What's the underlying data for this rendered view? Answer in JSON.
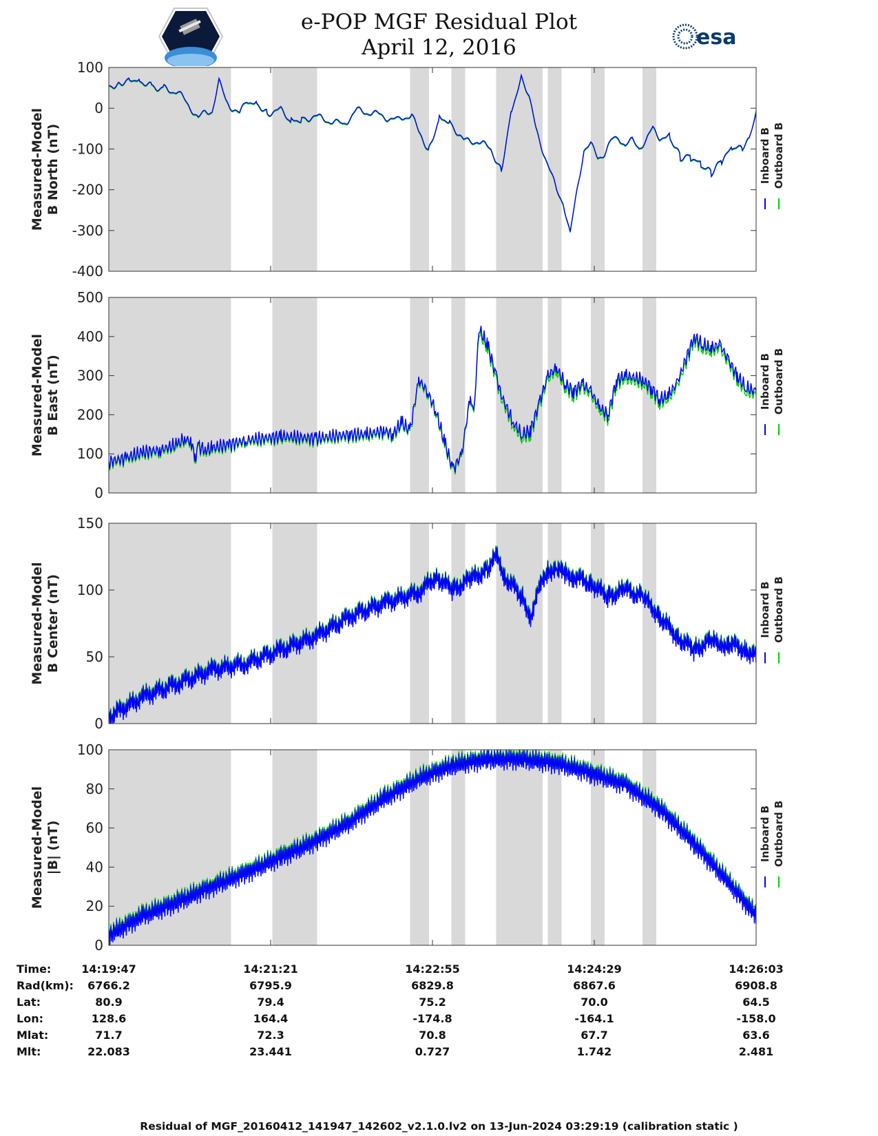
{
  "header": {
    "title": "e-POP MGF Residual Plot",
    "date": "April 12, 2016",
    "left_logo": "cassiope-satellite-logo",
    "right_logo": "esa-logo",
    "right_logo_text": "esa"
  },
  "colors": {
    "inboard": "#0000ff",
    "outboard": "#00cc00",
    "shade": "#d9d9d9"
  },
  "chart_data": [
    {
      "type": "line",
      "id": "north",
      "ylabel": [
        "Measured-Model",
        "B North (nT)"
      ],
      "ylim": [
        -400,
        100
      ],
      "yticks": [
        -400,
        -300,
        -200,
        -100,
        0,
        100
      ],
      "x_range_seconds": [
        0,
        376
      ],
      "legend": [
        "Inboard B",
        "Outboard B"
      ],
      "series": [
        {
          "name": "Inboard B",
          "x": [
            0,
            6,
            12,
            18,
            25,
            32,
            40,
            48,
            52,
            56,
            60,
            64,
            68,
            72,
            76,
            80,
            86,
            92,
            100,
            106,
            112,
            120,
            128,
            136,
            144,
            152,
            160,
            168,
            172,
            176,
            180,
            186,
            192,
            198,
            206,
            214,
            222,
            228,
            234,
            240,
            244,
            248,
            252,
            256,
            260,
            264,
            268,
            272,
            276,
            280,
            284,
            288,
            292,
            296,
            300,
            304,
            308,
            312,
            316,
            320,
            326,
            332,
            338,
            344,
            350,
            356,
            362,
            368,
            372,
            376
          ],
          "values": [
            55,
            62,
            75,
            70,
            55,
            50,
            40,
            0,
            -25,
            -10,
            -5,
            65,
            20,
            0,
            -15,
            20,
            15,
            -10,
            -5,
            -30,
            -25,
            -20,
            -30,
            -40,
            -5,
            -10,
            -20,
            -30,
            -20,
            -15,
            -60,
            -100,
            -20,
            -30,
            -80,
            -80,
            -100,
            -150,
            0,
            80,
            30,
            -50,
            -100,
            -150,
            -200,
            -230,
            -310,
            -200,
            -100,
            -90,
            -120,
            -110,
            -80,
            -70,
            -90,
            -80,
            -95,
            -80,
            -50,
            -70,
            -70,
            -120,
            -120,
            -140,
            -160,
            -130,
            -100,
            -100,
            -80,
            -10
          ]
        },
        {
          "name": "Outboard B",
          "x": [
            0,
            6,
            12,
            18,
            25,
            32,
            40,
            48,
            52,
            56,
            60,
            64,
            68,
            72,
            76,
            80,
            86,
            92,
            100,
            106,
            112,
            120,
            128,
            136,
            144,
            152,
            160,
            168,
            172,
            176,
            180,
            186,
            192,
            198,
            206,
            214,
            222,
            228,
            234,
            240,
            244,
            248,
            252,
            256,
            260,
            264,
            268,
            272,
            276,
            280,
            284,
            288,
            292,
            296,
            300,
            304,
            308,
            312,
            316,
            320,
            326,
            332,
            338,
            344,
            350,
            356,
            362,
            368,
            372,
            376
          ],
          "values": [
            53,
            60,
            73,
            68,
            53,
            48,
            38,
            -2,
            -27,
            -12,
            -7,
            63,
            18,
            -2,
            -17,
            18,
            13,
            -12,
            -7,
            -32,
            -27,
            -22,
            -32,
            -42,
            -7,
            -12,
            -22,
            -32,
            -22,
            -17,
            -62,
            -102,
            -22,
            -32,
            -82,
            -82,
            -102,
            -152,
            -2,
            78,
            28,
            -52,
            -102,
            -152,
            -202,
            -232,
            -312,
            -202,
            -102,
            -92,
            -122,
            -112,
            -82,
            -72,
            -92,
            -82,
            -97,
            -82,
            -52,
            -72,
            -72,
            -122,
            -122,
            -142,
            -162,
            -132,
            -102,
            -102,
            -82,
            -5
          ]
        }
      ]
    },
    {
      "type": "line",
      "id": "east",
      "ylabel": [
        "Measured-Model",
        "B East (nT)"
      ],
      "ylim": [
        0,
        500
      ],
      "yticks": [
        0,
        100,
        200,
        300,
        400,
        500
      ],
      "x_range_seconds": [
        0,
        376
      ],
      "legend": [
        "Inboard B",
        "Outboard B"
      ],
      "series": [
        {
          "name": "Inboard B",
          "x": [
            0,
            10,
            20,
            30,
            40,
            44,
            48,
            50,
            52,
            56,
            60,
            70,
            80,
            100,
            120,
            140,
            150,
            160,
            165,
            170,
            175,
            180,
            185,
            190,
            195,
            200,
            205,
            210,
            212,
            215,
            220,
            225,
            228,
            235,
            240,
            245,
            250,
            255,
            260,
            265,
            270,
            275,
            280,
            285,
            290,
            295,
            300,
            310,
            315,
            320,
            325,
            330,
            340,
            345,
            350,
            355,
            360,
            365,
            370,
            376
          ],
          "values": [
            80,
            90,
            105,
            110,
            125,
            140,
            130,
            90,
            120,
            110,
            115,
            125,
            135,
            145,
            140,
            150,
            150,
            160,
            150,
            180,
            160,
            290,
            260,
            210,
            130,
            60,
            100,
            250,
            200,
            420,
            380,
            300,
            250,
            180,
            150,
            160,
            230,
            300,
            320,
            280,
            260,
            280,
            260,
            220,
            200,
            290,
            300,
            290,
            270,
            240,
            250,
            280,
            400,
            380,
            370,
            380,
            340,
            300,
            270,
            260
          ]
        },
        {
          "name": "Outboard B",
          "x": [
            0,
            10,
            20,
            30,
            40,
            44,
            48,
            50,
            52,
            56,
            60,
            70,
            80,
            100,
            120,
            140,
            150,
            160,
            165,
            170,
            175,
            180,
            185,
            190,
            195,
            200,
            205,
            210,
            212,
            215,
            220,
            225,
            228,
            235,
            240,
            245,
            250,
            255,
            260,
            265,
            270,
            275,
            280,
            285,
            290,
            295,
            300,
            310,
            315,
            320,
            325,
            330,
            340,
            345,
            350,
            355,
            360,
            365,
            370,
            376
          ],
          "values": [
            75,
            85,
            100,
            105,
            120,
            135,
            125,
            85,
            115,
            105,
            110,
            120,
            130,
            140,
            135,
            145,
            145,
            155,
            145,
            175,
            155,
            285,
            255,
            205,
            125,
            55,
            95,
            245,
            195,
            410,
            370,
            290,
            240,
            170,
            140,
            150,
            220,
            290,
            310,
            270,
            250,
            270,
            250,
            210,
            190,
            280,
            290,
            280,
            260,
            230,
            240,
            270,
            390,
            370,
            360,
            370,
            330,
            290,
            260,
            250
          ]
        }
      ]
    },
    {
      "type": "line",
      "id": "center",
      "ylabel": [
        "Measured-Model",
        "B Center (nT)"
      ],
      "ylim": [
        0,
        150
      ],
      "yticks": [
        0,
        50,
        100,
        150
      ],
      "x_range_seconds": [
        0,
        376
      ],
      "legend": [
        "Inboard B",
        "Outboard B"
      ],
      "series": [
        {
          "name": "Inboard B",
          "x": [
            0,
            20,
            40,
            60,
            80,
            100,
            120,
            140,
            160,
            180,
            190,
            200,
            210,
            220,
            225,
            230,
            240,
            245,
            250,
            255,
            260,
            265,
            270,
            280,
            290,
            300,
            310,
            320,
            330,
            340,
            350,
            355,
            360,
            370,
            376
          ],
          "values": [
            5,
            20,
            30,
            40,
            45,
            55,
            65,
            80,
            90,
            98,
            110,
            100,
            108,
            115,
            125,
            110,
            95,
            80,
            100,
            115,
            115,
            112,
            110,
            105,
            95,
            100,
            95,
            80,
            65,
            55,
            62,
            58,
            60,
            55,
            50
          ]
        },
        {
          "name": "Outboard B",
          "x": [
            0,
            20,
            40,
            60,
            80,
            100,
            120,
            140,
            160,
            180,
            190,
            200,
            210,
            220,
            225,
            230,
            240,
            245,
            250,
            255,
            260,
            265,
            270,
            280,
            290,
            300,
            310,
            320,
            330,
            340,
            350,
            355,
            360,
            370,
            376
          ],
          "values": [
            6,
            21,
            31,
            41,
            46,
            56,
            66,
            81,
            91,
            99,
            111,
            101,
            109,
            116,
            126,
            111,
            96,
            81,
            101,
            116,
            116,
            113,
            111,
            106,
            96,
            101,
            96,
            81,
            66,
            56,
            63,
            59,
            61,
            56,
            51
          ]
        }
      ]
    },
    {
      "type": "line",
      "id": "total",
      "ylabel": [
        "Measured-Model",
        "|B| (nT)"
      ],
      "ylim": [
        0,
        100
      ],
      "yticks": [
        0,
        20,
        40,
        60,
        80,
        100
      ],
      "x_range_seconds": [
        0,
        376
      ],
      "legend": [
        "Inboard B",
        "Outboard B"
      ],
      "series": [
        {
          "name": "Inboard B",
          "x": [
            0,
            20,
            40,
            60,
            80,
            100,
            120,
            140,
            160,
            180,
            200,
            220,
            240,
            260,
            280,
            300,
            320,
            340,
            360,
            376
          ],
          "values": [
            5,
            15,
            22,
            30,
            37,
            45,
            53,
            63,
            75,
            85,
            92,
            95,
            95,
            93,
            88,
            82,
            70,
            52,
            32,
            15
          ]
        },
        {
          "name": "Outboard B",
          "x": [
            0,
            20,
            40,
            60,
            80,
            100,
            120,
            140,
            160,
            180,
            200,
            220,
            240,
            260,
            280,
            300,
            320,
            340,
            360,
            376
          ],
          "values": [
            6,
            16,
            23,
            31,
            38,
            46,
            54,
            64,
            76,
            86,
            93,
            96,
            96,
            94,
            89,
            83,
            71,
            53,
            33,
            16
          ]
        }
      ]
    }
  ],
  "shaded_intervals_seconds": [
    [
      0,
      71
    ],
    [
      95,
      121
    ],
    [
      175,
      186
    ],
    [
      199,
      207
    ],
    [
      225,
      252
    ],
    [
      255,
      263
    ],
    [
      280,
      288
    ],
    [
      310,
      318
    ]
  ],
  "info_table": {
    "row_labels": [
      "Time:",
      "Rad(km):",
      "Lat:",
      "Lon:",
      "Mlat:",
      "Mlt:"
    ],
    "columns": [
      {
        "values": [
          "14:19:47",
          "6766.2",
          "80.9",
          "128.6",
          "71.7",
          "22.083"
        ]
      },
      {
        "values": [
          "14:21:21",
          "6795.9",
          "79.4",
          "164.4",
          "72.3",
          "23.441"
        ]
      },
      {
        "values": [
          "14:22:55",
          "6829.8",
          "75.2",
          "-174.8",
          "70.8",
          "0.727"
        ]
      },
      {
        "values": [
          "14:24:29",
          "6867.6",
          "70.0",
          "-164.1",
          "67.7",
          "1.742"
        ]
      },
      {
        "values": [
          "14:26:03",
          "6908.8",
          "64.5",
          "-158.0",
          "63.6",
          "2.481"
        ]
      }
    ]
  },
  "footer": "Residual of MGF_20160412_141947_142602_v2.1.0.lv2 on 13-Jun-2024 03:29:19 (calibration static )"
}
